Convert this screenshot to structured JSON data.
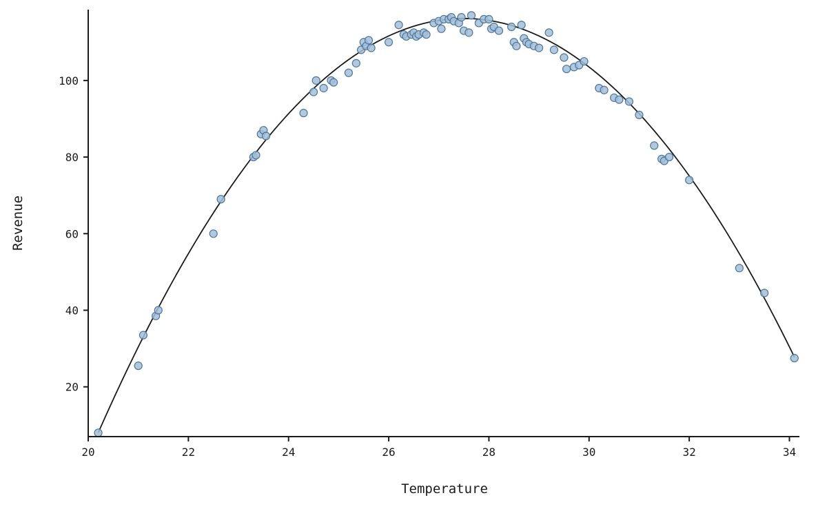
{
  "chart_data": {
    "type": "scatter",
    "title": "",
    "xlabel": "Temperature",
    "ylabel": "Revenue",
    "xlim": [
      20,
      34.2
    ],
    "ylim": [
      7,
      118.5
    ],
    "x_ticks": [
      20,
      22,
      24,
      26,
      28,
      30,
      32,
      34
    ],
    "y_ticks": [
      20,
      40,
      60,
      80,
      100
    ],
    "grid": false,
    "legend": null,
    "axis_color": "#1a1a1a",
    "point_style": {
      "fill": "#a3c0d9",
      "stroke": "#4c7699",
      "radius": 5.5,
      "opacity": 0.85
    },
    "fit_curve": {
      "type": "quadratic",
      "description": "y = peak_y - a * (x - peak_x)^2",
      "a": 2.03,
      "peak_x": 27.5,
      "peak_y": 116.2,
      "x_range": [
        20.2,
        34.1
      ],
      "color": "#1a1a1a",
      "stroke_width": 1.8
    },
    "points": [
      [
        20.2,
        8
      ],
      [
        21.0,
        25.5
      ],
      [
        21.1,
        33.5
      ],
      [
        21.35,
        38.5
      ],
      [
        21.4,
        40
      ],
      [
        22.5,
        60
      ],
      [
        22.65,
        69
      ],
      [
        23.3,
        80
      ],
      [
        23.35,
        80.5
      ],
      [
        23.45,
        86
      ],
      [
        23.5,
        87
      ],
      [
        23.55,
        85.5
      ],
      [
        24.3,
        91.5
      ],
      [
        24.5,
        97
      ],
      [
        24.55,
        100
      ],
      [
        24.7,
        98
      ],
      [
        24.85,
        100
      ],
      [
        24.9,
        99.5
      ],
      [
        25.2,
        102
      ],
      [
        25.35,
        104.5
      ],
      [
        25.45,
        108
      ],
      [
        25.5,
        110
      ],
      [
        25.55,
        109
      ],
      [
        25.6,
        110.5
      ],
      [
        25.65,
        108.5
      ],
      [
        26.0,
        110
      ],
      [
        26.2,
        114.5
      ],
      [
        26.3,
        112
      ],
      [
        26.35,
        111.5
      ],
      [
        26.45,
        112
      ],
      [
        26.5,
        112.5
      ],
      [
        26.55,
        111.5
      ],
      [
        26.6,
        112
      ],
      [
        26.7,
        112.5
      ],
      [
        26.75,
        112
      ],
      [
        26.9,
        115
      ],
      [
        27.0,
        115.5
      ],
      [
        27.05,
        113.5
      ],
      [
        27.1,
        116
      ],
      [
        27.2,
        116
      ],
      [
        27.25,
        116.5
      ],
      [
        27.3,
        115.5
      ],
      [
        27.4,
        115
      ],
      [
        27.45,
        116.5
      ],
      [
        27.5,
        113
      ],
      [
        27.6,
        112.5
      ],
      [
        27.65,
        117
      ],
      [
        27.8,
        115
      ],
      [
        27.9,
        116
      ],
      [
        28.0,
        116
      ],
      [
        28.05,
        113.5
      ],
      [
        28.1,
        114
      ],
      [
        28.2,
        113
      ],
      [
        28.45,
        114
      ],
      [
        28.5,
        110
      ],
      [
        28.55,
        109
      ],
      [
        28.65,
        114.5
      ],
      [
        28.7,
        111
      ],
      [
        28.75,
        110
      ],
      [
        28.8,
        109.5
      ],
      [
        28.9,
        109
      ],
      [
        29.0,
        108.5
      ],
      [
        29.2,
        112.5
      ],
      [
        29.3,
        108
      ],
      [
        29.5,
        106
      ],
      [
        29.55,
        103
      ],
      [
        29.7,
        103.5
      ],
      [
        29.8,
        104
      ],
      [
        29.9,
        105
      ],
      [
        30.2,
        98
      ],
      [
        30.3,
        97.5
      ],
      [
        30.5,
        95.5
      ],
      [
        30.6,
        95
      ],
      [
        30.8,
        94.5
      ],
      [
        31.0,
        91
      ],
      [
        31.3,
        83
      ],
      [
        31.45,
        79.5
      ],
      [
        31.5,
        79
      ],
      [
        31.6,
        80
      ],
      [
        32.0,
        74
      ],
      [
        33.0,
        51
      ],
      [
        33.5,
        44.5
      ],
      [
        34.1,
        27.5
      ]
    ]
  }
}
